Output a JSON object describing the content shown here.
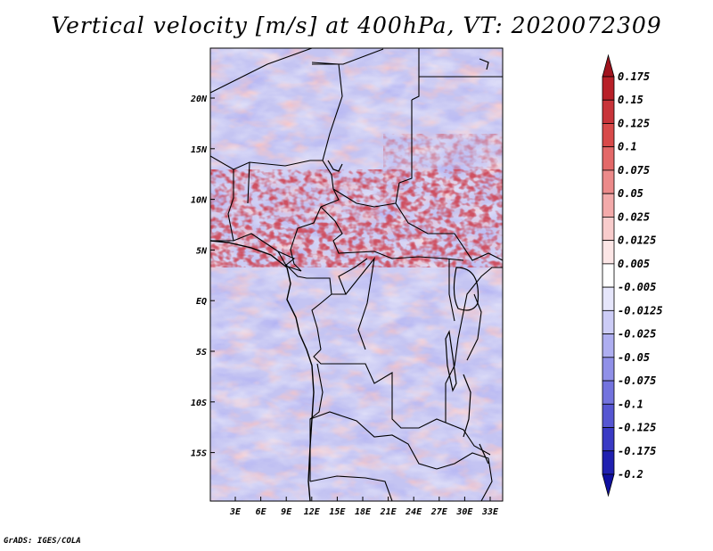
{
  "title": "Vertical velocity [m/s] at 400hPa, VT: 2020072309",
  "credit": "GrADS: IGES/COLA",
  "map": {
    "lat_labels": [
      "20N",
      "15N",
      "10N",
      "5N",
      "EQ",
      "5S",
      "10S",
      "15S"
    ],
    "lon_labels": [
      "3E",
      "6E",
      "9E",
      "12E",
      "15E",
      "18E",
      "21E",
      "24E",
      "27E",
      "30E",
      "33E"
    ]
  },
  "colorbar": {
    "labels": [
      "0.175",
      "0.15",
      "0.125",
      "0.1",
      "0.075",
      "0.05",
      "0.025",
      "0.0125",
      "0.005",
      "-0.005",
      "-0.0125",
      "-0.025",
      "-0.05",
      "-0.075",
      "-0.1",
      "-0.125",
      "-0.175",
      "-0.2"
    ],
    "colors": [
      "#a0141e",
      "#b82028",
      "#c8343a",
      "#d84a4a",
      "#e36868",
      "#ec8a8a",
      "#f3aaaa",
      "#f8cccc",
      "#fce6e6",
      "#ffffff",
      "#e6e6fb",
      "#ccccf6",
      "#aeaef0",
      "#9090e8",
      "#7373de",
      "#5656d2",
      "#3a3ac4",
      "#2020b0",
      "#1010a0"
    ]
  }
}
